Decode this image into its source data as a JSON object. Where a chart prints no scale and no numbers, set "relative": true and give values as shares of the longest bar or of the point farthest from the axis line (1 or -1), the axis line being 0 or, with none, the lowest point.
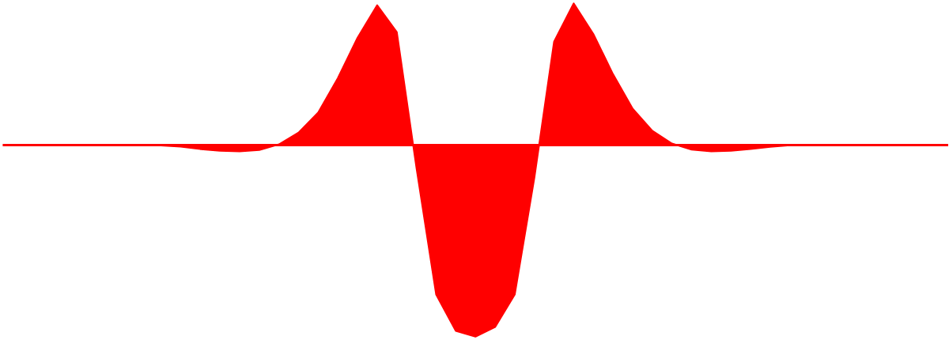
{
  "chart_data": {
    "type": "area",
    "relative": true,
    "color": "#ff0000",
    "categories": [
      null,
      null,
      null,
      null,
      null,
      null,
      null,
      null,
      null,
      null,
      null,
      null,
      null,
      null,
      null,
      null,
      null,
      null,
      null,
      null,
      null,
      null,
      null,
      null,
      null,
      null,
      null,
      null,
      null,
      null,
      null,
      null,
      null,
      null,
      null,
      null,
      null,
      null,
      null,
      null,
      null,
      null,
      null,
      null,
      null,
      null,
      null,
      null,
      null
    ],
    "values": [
      0,
      0,
      0,
      0,
      0,
      0,
      0,
      0,
      -0.002,
      -0.008,
      -0.021,
      -0.03,
      -0.033,
      -0.026,
      0.004,
      0.065,
      0.17,
      0.35,
      0.56,
      0.73,
      0.59,
      -0.12,
      -0.78,
      -0.97,
      -1,
      -0.95,
      -0.78,
      -0.17,
      0.54,
      0.74,
      0.58,
      0.37,
      0.19,
      0.075,
      0.008,
      -0.024,
      -0.033,
      -0.03,
      -0.02,
      -0.009,
      -0.001,
      0,
      0,
      0,
      0,
      0,
      0,
      0,
      0
    ],
    "grid": false,
    "legend": false
  }
}
